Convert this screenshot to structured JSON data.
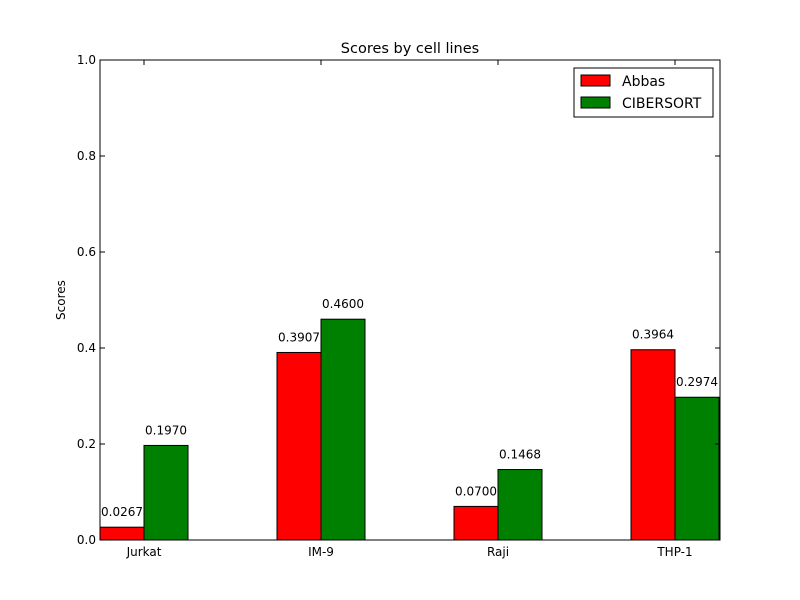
{
  "chart_data": {
    "type": "bar",
    "title": "Scores by cell lines",
    "xlabel": "",
    "ylabel": "Scores",
    "ylim": [
      0,
      1.0
    ],
    "yticks": [
      "0.0",
      "0.2",
      "0.4",
      "0.6",
      "0.8",
      "1.0"
    ],
    "categories": [
      "Jurkat",
      "IM-9",
      "Raji",
      "THP-1"
    ],
    "series": [
      {
        "name": "Abbas",
        "color": "#ff0000",
        "values": [
          0.0267,
          0.3907,
          0.07,
          0.3964
        ],
        "labels": [
          "0.0267",
          "0.3907",
          "0.0700",
          "0.3964"
        ]
      },
      {
        "name": "CIBERSORT",
        "color": "#008000",
        "values": [
          0.197,
          0.46,
          0.1468,
          0.2974
        ],
        "labels": [
          "0.1970",
          "0.4600",
          "0.1468",
          "0.2974"
        ]
      }
    ],
    "legend": "top-right",
    "grid": false
  }
}
